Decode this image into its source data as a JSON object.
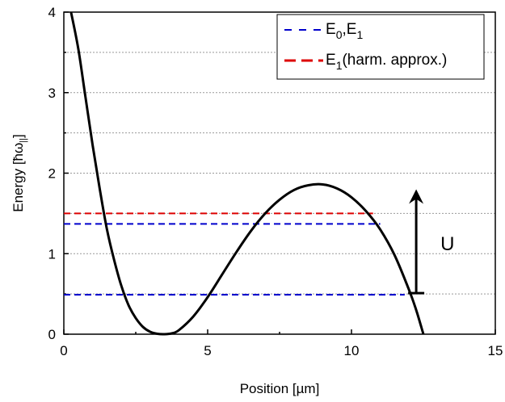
{
  "chart_data": {
    "type": "line",
    "xlabel": "Position [µm]",
    "ylabel": "Energy [ħω",
    "ylabel_sub": "||",
    "ylabel_close": "]",
    "xlim": [
      0,
      15
    ],
    "ylim": [
      0,
      4
    ],
    "x_ticks": [
      0,
      5,
      10,
      15
    ],
    "x_tick_labels": [
      "0",
      "5",
      "10",
      "15"
    ],
    "y_ticks": [
      0,
      1,
      2,
      3,
      4
    ],
    "y_tick_labels": [
      "0",
      "1",
      "2",
      "3",
      "4"
    ],
    "grid": "horizontal dotted at every 0.5",
    "legend_position": "top-right",
    "legend": [
      {
        "label_main": "E",
        "sub1": "0",
        "mid": ",E",
        "sub2": "1",
        "tail": "",
        "color": "#0000cc"
      },
      {
        "label_main": "E",
        "sub1": "1",
        "mid": "(harm. approx.)",
        "sub2": "",
        "tail": "",
        "color": "#dd0000"
      }
    ],
    "potential": {
      "color": "#000000",
      "points": [
        [
          0.25,
          4.0
        ],
        [
          0.5,
          3.55
        ],
        [
          0.75,
          2.95
        ],
        [
          1.0,
          2.35
        ],
        [
          1.25,
          1.8
        ],
        [
          1.5,
          1.3
        ],
        [
          1.75,
          0.92
        ],
        [
          2.0,
          0.6
        ],
        [
          2.25,
          0.36
        ],
        [
          2.5,
          0.2
        ],
        [
          2.75,
          0.09
        ],
        [
          3.0,
          0.03
        ],
        [
          3.25,
          0.005
        ],
        [
          3.5,
          0.0
        ],
        [
          3.75,
          0.01
        ],
        [
          4.0,
          0.05
        ],
        [
          4.5,
          0.22
        ],
        [
          5.0,
          0.46
        ],
        [
          5.5,
          0.74
        ],
        [
          6.0,
          1.02
        ],
        [
          6.5,
          1.28
        ],
        [
          7.0,
          1.5
        ],
        [
          7.5,
          1.67
        ],
        [
          8.0,
          1.79
        ],
        [
          8.5,
          1.85
        ],
        [
          9.0,
          1.86
        ],
        [
          9.5,
          1.81
        ],
        [
          10.0,
          1.7
        ],
        [
          10.5,
          1.53
        ],
        [
          11.0,
          1.3
        ],
        [
          11.5,
          0.98
        ],
        [
          12.0,
          0.55
        ],
        [
          12.25,
          0.3
        ],
        [
          12.5,
          0.0
        ]
      ]
    },
    "levels": [
      {
        "name": "E0",
        "y": 0.49,
        "x_start": 0.0,
        "x_end": 11.85,
        "color": "#0000cc"
      },
      {
        "name": "E1",
        "y": 1.37,
        "x_start": 0.0,
        "x_end": 11.0,
        "color": "#0000cc"
      },
      {
        "name": "E1 harm",
        "y": 1.5,
        "x_start": 0.0,
        "x_end": 10.75,
        "color": "#dd0000"
      }
    ],
    "barrier_arrow": {
      "x": 12.25,
      "y_from": 0.51,
      "y_to": 1.78,
      "label": "U"
    }
  }
}
